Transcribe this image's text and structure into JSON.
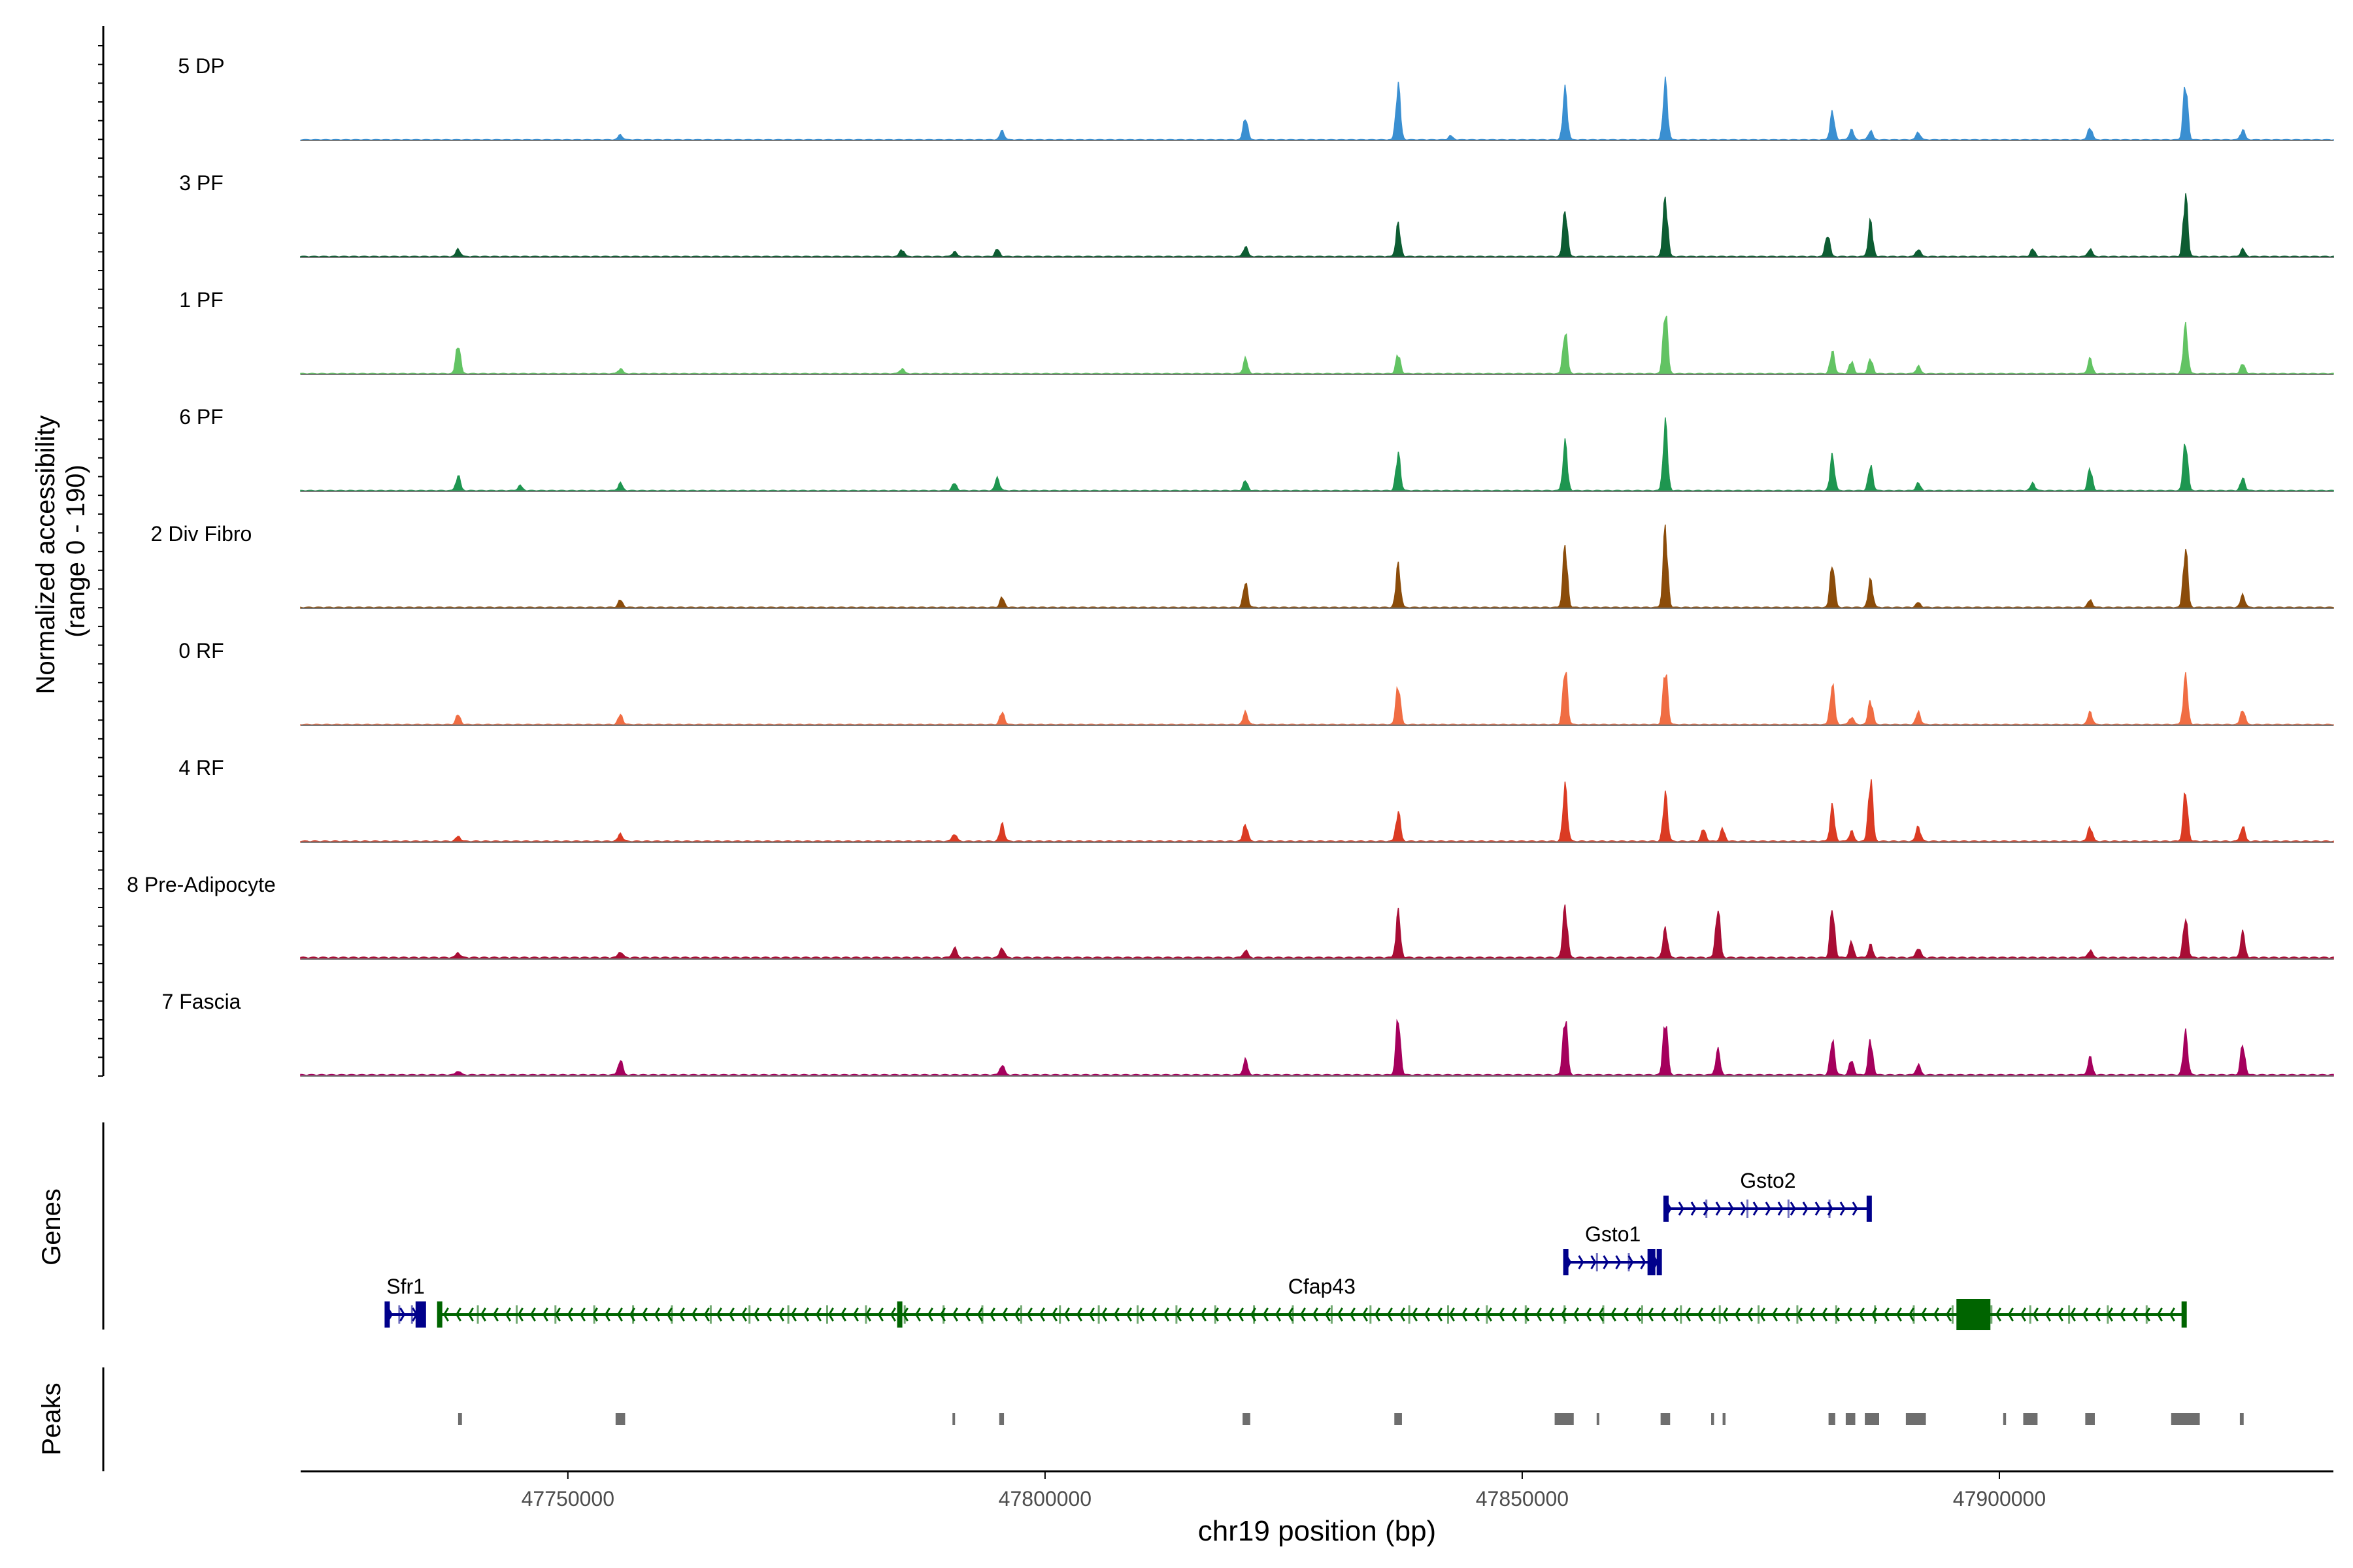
{
  "chart_data": {
    "type": "area",
    "title": "",
    "chromosome": "chr19",
    "xlabel": "chr19 position (bp)",
    "ylabel_line1": "Normalized accessibility",
    "ylabel_line2": "(range 0 - 190)",
    "xlim": [
      47722000,
      47935000
    ],
    "x_ticks": [
      47750000,
      47800000,
      47850000,
      47900000
    ],
    "x_tick_labels": [
      "47750000",
      "47800000",
      "47850000",
      "47900000"
    ],
    "y_range": [
      0,
      190
    ],
    "series": [
      {
        "name": "5 DP",
        "color": "#3a8fd1",
        "baseline": 1.2,
        "peaks": [
          [
            47755500,
            10
          ],
          [
            47795500,
            18
          ],
          [
            47821000,
            45
          ],
          [
            47837000,
            110
          ],
          [
            47842500,
            8
          ],
          [
            47854500,
            100
          ],
          [
            47865000,
            115
          ],
          [
            47882500,
            55
          ],
          [
            47884500,
            20
          ],
          [
            47886500,
            18
          ],
          [
            47891500,
            15
          ],
          [
            47909500,
            25
          ],
          [
            47919500,
            115
          ],
          [
            47925500,
            20
          ]
        ]
      },
      {
        "name": "3 PF",
        "color": "#0d5c32",
        "baseline": 1.5,
        "peaks": [
          [
            47738500,
            15
          ],
          [
            47785000,
            15
          ],
          [
            47790500,
            10
          ],
          [
            47795000,
            15
          ],
          [
            47821000,
            20
          ],
          [
            47837000,
            65
          ],
          [
            47854500,
            95
          ],
          [
            47865000,
            120
          ],
          [
            47882000,
            45
          ],
          [
            47886500,
            70
          ],
          [
            47891500,
            15
          ],
          [
            47903500,
            15
          ],
          [
            47909500,
            15
          ],
          [
            47919500,
            125
          ],
          [
            47925500,
            15
          ]
        ]
      },
      {
        "name": "1 PF",
        "color": "#62c363",
        "baseline": 1.3,
        "peaks": [
          [
            47738500,
            60
          ],
          [
            47755500,
            10
          ],
          [
            47785000,
            10
          ],
          [
            47821000,
            30
          ],
          [
            47837000,
            40
          ],
          [
            47854500,
            85
          ],
          [
            47865000,
            130
          ],
          [
            47882500,
            45
          ],
          [
            47884500,
            25
          ],
          [
            47886500,
            30
          ],
          [
            47891500,
            15
          ],
          [
            47909500,
            30
          ],
          [
            47919500,
            95
          ],
          [
            47925500,
            20
          ]
        ]
      },
      {
        "name": "6 PF",
        "color": "#1e9650",
        "baseline": 1.3,
        "peaks": [
          [
            47738500,
            30
          ],
          [
            47745000,
            10
          ],
          [
            47755500,
            15
          ],
          [
            47790500,
            15
          ],
          [
            47795000,
            25
          ],
          [
            47821000,
            20
          ],
          [
            47837000,
            75
          ],
          [
            47854500,
            95
          ],
          [
            47865000,
            135
          ],
          [
            47882500,
            70
          ],
          [
            47886500,
            50
          ],
          [
            47891500,
            15
          ],
          [
            47903500,
            15
          ],
          [
            47909500,
            45
          ],
          [
            47919500,
            100
          ],
          [
            47925500,
            25
          ]
        ]
      },
      {
        "name": "2 Div Fibro",
        "color": "#8b4c0a",
        "baseline": 1.5,
        "peaks": [
          [
            47755500,
            15
          ],
          [
            47795500,
            20
          ],
          [
            47821000,
            50
          ],
          [
            47837000,
            85
          ],
          [
            47854500,
            125
          ],
          [
            47865000,
            160
          ],
          [
            47882500,
            90
          ],
          [
            47886500,
            55
          ],
          [
            47891500,
            10
          ],
          [
            47909500,
            15
          ],
          [
            47919500,
            120
          ],
          [
            47925500,
            25
          ]
        ]
      },
      {
        "name": "0 RF",
        "color": "#f06d43",
        "baseline": 1.3,
        "peaks": [
          [
            47738500,
            20
          ],
          [
            47755500,
            20
          ],
          [
            47795500,
            25
          ],
          [
            47821000,
            25
          ],
          [
            47837000,
            80
          ],
          [
            47854500,
            115
          ],
          [
            47865000,
            115
          ],
          [
            47882500,
            80
          ],
          [
            47884500,
            15
          ],
          [
            47886500,
            50
          ],
          [
            47891500,
            25
          ],
          [
            47909500,
            25
          ],
          [
            47919500,
            95
          ],
          [
            47925500,
            30
          ]
        ]
      },
      {
        "name": "4 RF",
        "color": "#db3b23",
        "baseline": 1.6,
        "peaks": [
          [
            47738500,
            10
          ],
          [
            47755500,
            15
          ],
          [
            47790500,
            15
          ],
          [
            47795500,
            35
          ],
          [
            47821000,
            35
          ],
          [
            47837000,
            60
          ],
          [
            47854500,
            110
          ],
          [
            47865000,
            95
          ],
          [
            47869000,
            25
          ],
          [
            47871000,
            25
          ],
          [
            47882500,
            70
          ],
          [
            47884500,
            20
          ],
          [
            47886500,
            125
          ],
          [
            47891500,
            30
          ],
          [
            47909500,
            30
          ],
          [
            47919500,
            100
          ],
          [
            47925500,
            30
          ]
        ]
      },
      {
        "name": "8 Pre-Adipocyte",
        "color": "#a80d35",
        "baseline": 2.5,
        "peaks": [
          [
            47738500,
            10
          ],
          [
            47755500,
            12
          ],
          [
            47790500,
            20
          ],
          [
            47795500,
            20
          ],
          [
            47821000,
            15
          ],
          [
            47837000,
            90
          ],
          [
            47854500,
            105
          ],
          [
            47865000,
            60
          ],
          [
            47870500,
            100
          ],
          [
            47882500,
            100
          ],
          [
            47884500,
            30
          ],
          [
            47886500,
            25
          ],
          [
            47891500,
            20
          ],
          [
            47909500,
            15
          ],
          [
            47919500,
            80
          ],
          [
            47925500,
            50
          ]
        ]
      },
      {
        "name": "7 Fascia",
        "color": "#a5005d",
        "baseline": 2.0,
        "peaks": [
          [
            47738500,
            8
          ],
          [
            47755500,
            30
          ],
          [
            47795500,
            20
          ],
          [
            47821000,
            30
          ],
          [
            47837000,
            115
          ],
          [
            47854500,
            120
          ],
          [
            47865000,
            115
          ],
          [
            47870500,
            50
          ],
          [
            47882500,
            70
          ],
          [
            47884500,
            30
          ],
          [
            47886500,
            70
          ],
          [
            47891500,
            20
          ],
          [
            47909500,
            35
          ],
          [
            47919500,
            85
          ],
          [
            47925500,
            60
          ]
        ]
      }
    ],
    "genes_track_label": "Genes",
    "genes": [
      {
        "name": "Gsto2",
        "strand": "+",
        "start": 47865000,
        "end": 47886500,
        "row": 2,
        "color": "#00008b"
      },
      {
        "name": "Gsto1",
        "strand": "+",
        "start": 47854500,
        "end": 47864500,
        "row": 1,
        "color": "#00008b"
      },
      {
        "name": "Sfr1",
        "strand": "+",
        "start": 47731000,
        "end": 47735000,
        "row": 0,
        "color": "#00008b"
      },
      {
        "name": "Cfap43",
        "strand": "-",
        "start": 47736500,
        "end": 47919500,
        "row": 0,
        "color": "#006400"
      }
    ],
    "peaks_track_label": "Peaks",
    "peak_regions": [
      [
        47738500,
        47738900
      ],
      [
        47755000,
        47756000
      ],
      [
        47790300,
        47790500
      ],
      [
        47795200,
        47795700
      ],
      [
        47820700,
        47821500
      ],
      [
        47836600,
        47837400
      ],
      [
        47853400,
        47855400
      ],
      [
        47857800,
        47858000
      ],
      [
        47864500,
        47865500
      ],
      [
        47869800,
        47870100
      ],
      [
        47871000,
        47871300
      ],
      [
        47882100,
        47882800
      ],
      [
        47883900,
        47884900
      ],
      [
        47885900,
        47887400
      ],
      [
        47890200,
        47892300
      ],
      [
        47900400,
        47900700
      ],
      [
        47902500,
        47904000
      ],
      [
        47909000,
        47910000
      ],
      [
        47918000,
        47921000
      ],
      [
        47925200,
        47925600
      ]
    ]
  }
}
